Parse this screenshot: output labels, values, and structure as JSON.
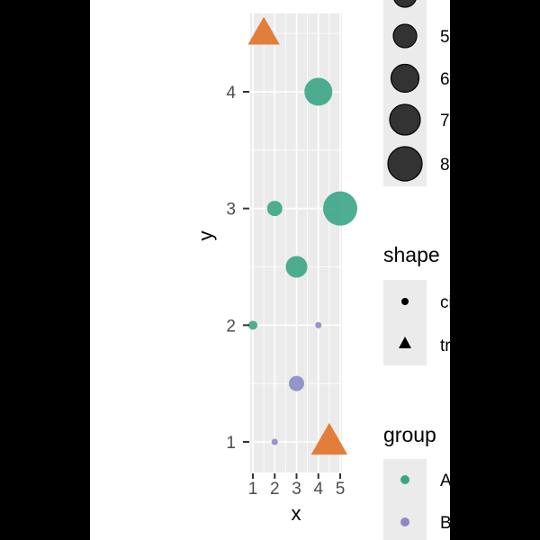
{
  "chart_data": {
    "type": "scatter",
    "xlabel": "x",
    "ylabel": "y",
    "xlim": [
      1,
      5
    ],
    "ylim": [
      0.85,
      4.75
    ],
    "x_ticks": [
      1,
      2,
      3,
      4,
      5
    ],
    "y_ticks": [
      1,
      2,
      3,
      4
    ],
    "grid": true,
    "legend_position": "right",
    "colors": {
      "A": "#3aa585",
      "B": "#8e88c7",
      "triangle": "#e1782f",
      "panel": "#ebebeb"
    },
    "series": [
      {
        "name": "A",
        "points": [
          {
            "x": 1,
            "y": 2,
            "size": 4,
            "shape": "circle"
          },
          {
            "x": 2,
            "y": 3,
            "size": 5,
            "shape": "circle"
          },
          {
            "x": 3,
            "y": 2.5,
            "size": 6,
            "shape": "circle"
          },
          {
            "x": 4,
            "y": 4,
            "size": 7,
            "shape": "circle"
          },
          {
            "x": 5,
            "y": 3,
            "size": 8,
            "shape": "circle"
          }
        ]
      },
      {
        "name": "B",
        "points": [
          {
            "x": 2,
            "y": 1,
            "size": 2,
            "shape": "circle"
          },
          {
            "x": 3,
            "y": 1.5,
            "size": 5,
            "shape": "circle"
          },
          {
            "x": 4,
            "y": 2,
            "size": 2,
            "shape": "circle"
          }
        ]
      },
      {
        "name": "triangle",
        "points": [
          {
            "x": 1.5,
            "y": 4.5,
            "size": 7,
            "shape": "triangle"
          },
          {
            "x": 4.5,
            "y": 1,
            "size": 8,
            "shape": "triangle"
          }
        ]
      }
    ]
  },
  "legends": {
    "size": {
      "labels": [
        "5",
        "6",
        "7",
        "8"
      ]
    },
    "shape": {
      "title": "shape",
      "labels": [
        "circle",
        "triangle"
      ]
    },
    "group": {
      "title": "group",
      "labels": [
        "A",
        "B"
      ]
    }
  }
}
